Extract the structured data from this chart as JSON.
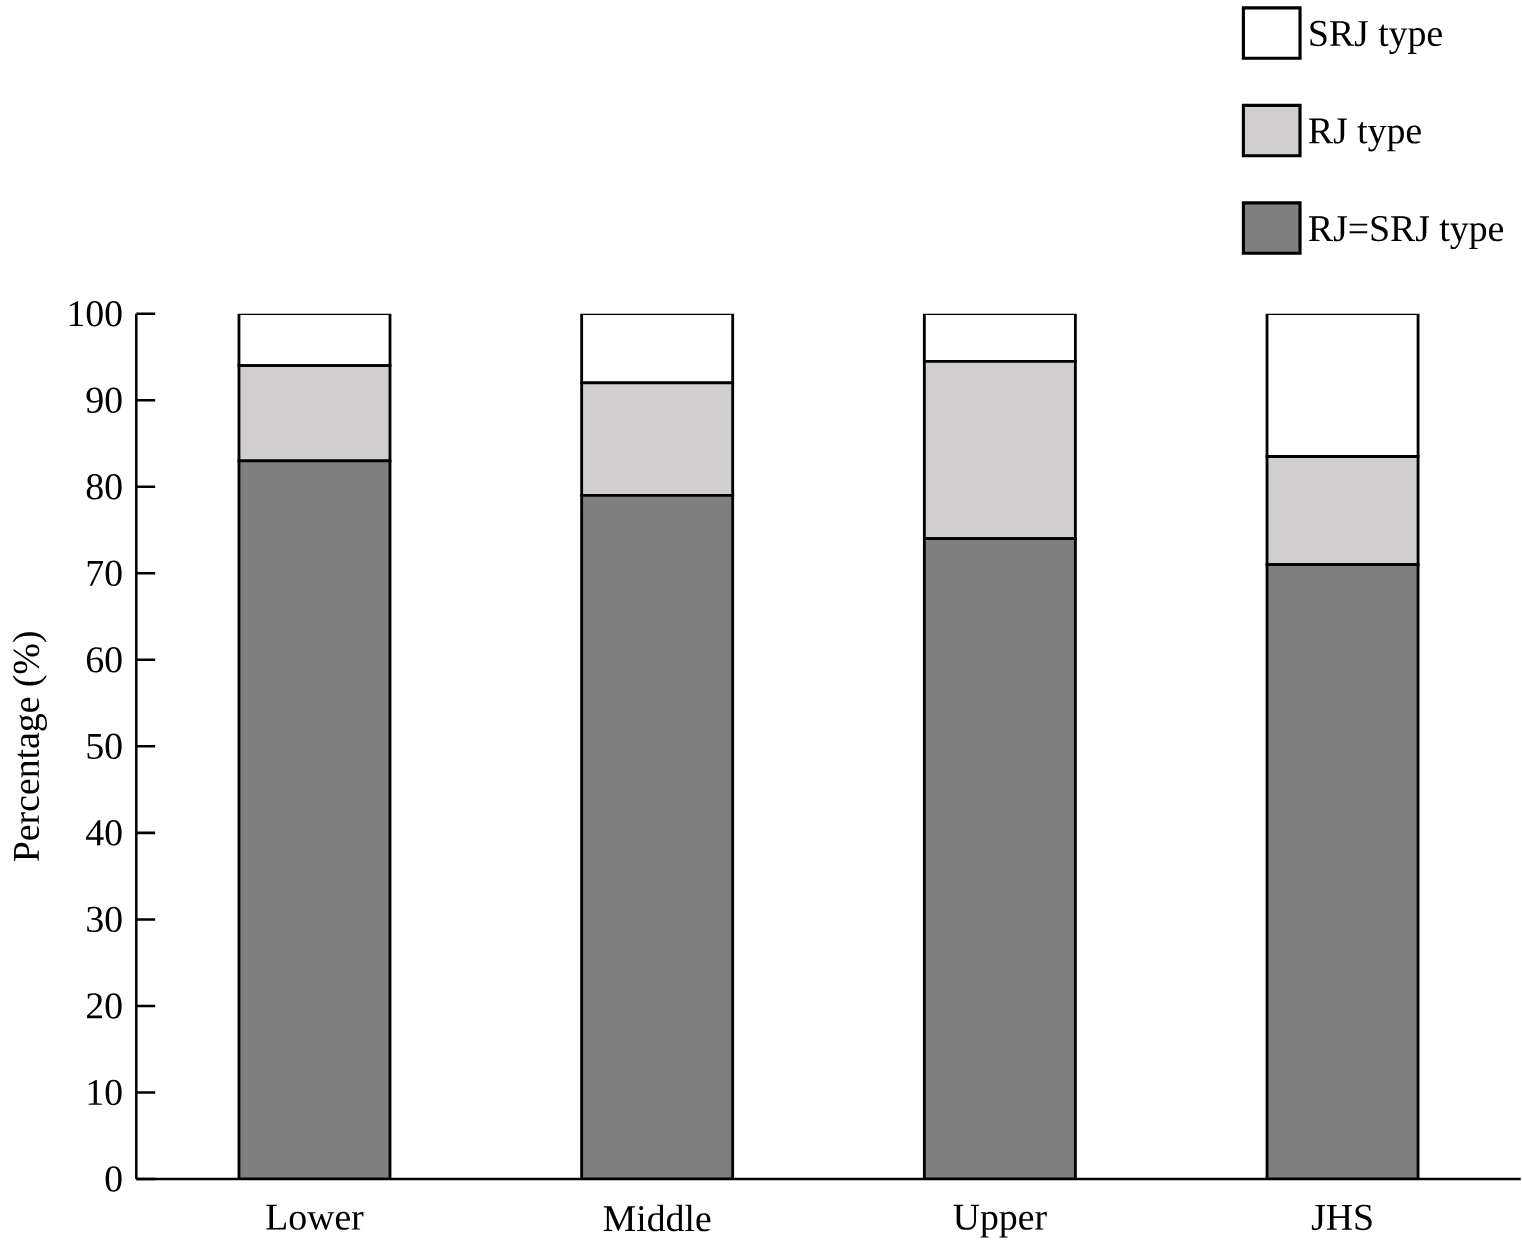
{
  "chart_data": {
    "type": "bar",
    "stacked": true,
    "ylabel": "Percentage (%)",
    "categories": [
      "Lower",
      "Middle",
      "Upper",
      "JHS"
    ],
    "series": [
      {
        "name": "RJ=SRJ type",
        "color": "#7f7f7f",
        "values": [
          83,
          79,
          74,
          71
        ]
      },
      {
        "name": "RJ type",
        "color": "#d0cece",
        "values": [
          11,
          13,
          20.5,
          12.5
        ]
      },
      {
        "name": "SRJ type",
        "color": "#ffffff",
        "values": [
          6,
          8,
          5.5,
          16.5
        ]
      }
    ],
    "ylim": [
      0,
      100
    ],
    "yticks": [
      0,
      10,
      20,
      30,
      40,
      50,
      60,
      70,
      80,
      90,
      100
    ],
    "grid": false,
    "legend": "top right"
  }
}
